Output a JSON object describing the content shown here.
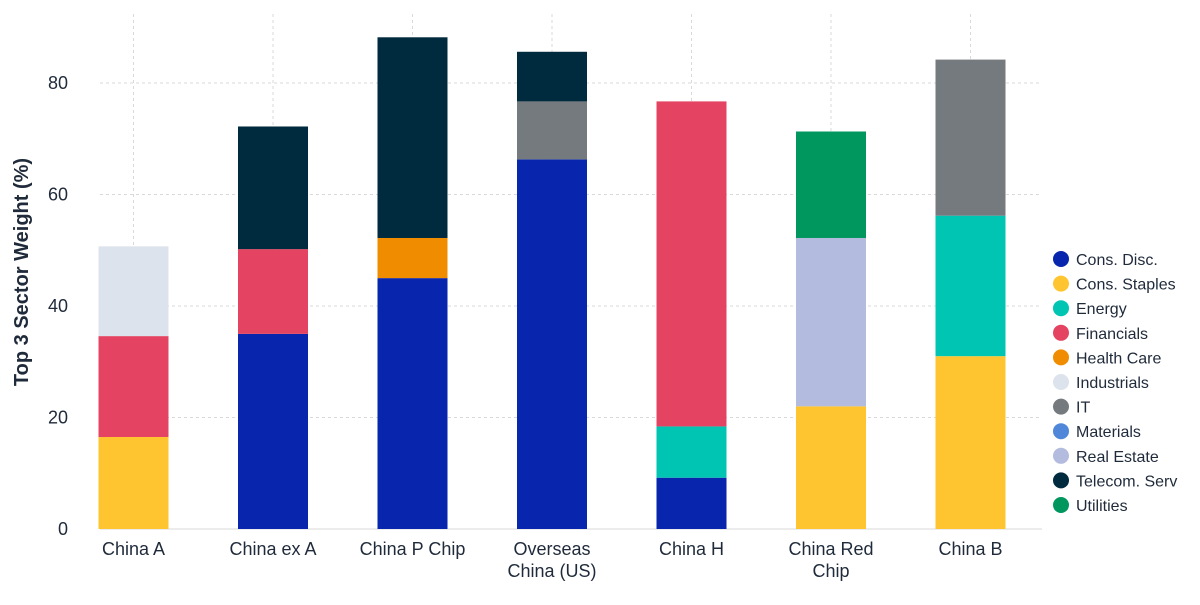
{
  "chart_data": {
    "type": "bar",
    "stacked": true,
    "ylabel": "Top 3 Sector Weight (%)",
    "xlabel": "",
    "ylim": [
      0,
      90
    ],
    "yticks": [
      0,
      20,
      40,
      60,
      80
    ],
    "grid": true,
    "legend_position": "right",
    "categories": [
      [
        "China A"
      ],
      [
        "China ex A"
      ],
      [
        "China P Chip"
      ],
      [
        "Overseas",
        "China (US)"
      ],
      [
        "China H"
      ],
      [
        "China Red",
        "Chip"
      ],
      [
        "China B"
      ]
    ],
    "series": [
      {
        "name": "Cons. Disc.",
        "color": "#0726ad",
        "values": [
          0,
          35,
          45,
          66.3,
          9.2,
          0,
          0
        ]
      },
      {
        "name": "Cons. Staples",
        "color": "#ffc530",
        "values": [
          16.5,
          0,
          0,
          0,
          0,
          22,
          31
        ]
      },
      {
        "name": "Energy",
        "color": "#00c5b3",
        "values": [
          0,
          0,
          0,
          0,
          9.2,
          0,
          25.2
        ]
      },
      {
        "name": "Financials",
        "color": "#e44461",
        "values": [
          18.1,
          15.2,
          0,
          0,
          58.3,
          0,
          0
        ]
      },
      {
        "name": "Health Care",
        "color": "#f08c00",
        "values": [
          0,
          0,
          7.2,
          0,
          0,
          0,
          0
        ]
      },
      {
        "name": "Industrials",
        "color": "#dde3ec",
        "values": [
          16.1,
          0,
          0,
          0,
          0,
          0,
          0
        ]
      },
      {
        "name": "IT",
        "color": "#757a7e",
        "values": [
          0,
          0,
          0,
          10.4,
          0,
          0,
          28
        ]
      },
      {
        "name": "Materials",
        "color": "#5187d9",
        "values": [
          0,
          0,
          0,
          0,
          0,
          0,
          0
        ]
      },
      {
        "name": "Real Estate",
        "color": "#b3bcde",
        "values": [
          0,
          0,
          0,
          0,
          0,
          30.2,
          0
        ]
      },
      {
        "name": "Telecom. Serv",
        "color": "#002a3d",
        "values": [
          0,
          22,
          36,
          8.9,
          0,
          0,
          0
        ]
      },
      {
        "name": "Utilities",
        "color": "#00975f",
        "values": [
          0,
          0,
          0,
          0,
          0,
          19.1,
          0
        ]
      }
    ]
  }
}
